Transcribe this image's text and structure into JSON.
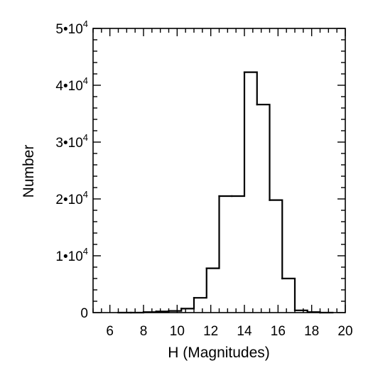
{
  "chart_data": {
    "type": "bar",
    "style": "step-histogram",
    "xlabel": "H (Magnitudes)",
    "ylabel": "Number",
    "xlim": [
      5,
      20
    ],
    "ylim": [
      0,
      50000
    ],
    "x_ticks": [
      6,
      8,
      10,
      12,
      14,
      16,
      18,
      20
    ],
    "y_ticks": [
      {
        "value": 0,
        "mantissa": "0",
        "exponent": ""
      },
      {
        "value": 10000,
        "mantissa": "1•10",
        "exponent": "4"
      },
      {
        "value": 20000,
        "mantissa": "2•10",
        "exponent": "4"
      },
      {
        "value": 30000,
        "mantissa": "3•10",
        "exponent": "4"
      },
      {
        "value": 40000,
        "mantissa": "4•10",
        "exponent": "4"
      },
      {
        "value": 50000,
        "mantissa": "5•10",
        "exponent": "4"
      }
    ],
    "bin_width": 0.75,
    "bins": [
      {
        "x0": 6.5,
        "x1": 7.25,
        "count": 0
      },
      {
        "x0": 7.25,
        "x1": 8.0,
        "count": 0
      },
      {
        "x0": 8.0,
        "x1": 8.75,
        "count": 100
      },
      {
        "x0": 8.75,
        "x1": 9.5,
        "count": 200
      },
      {
        "x0": 9.5,
        "x1": 10.25,
        "count": 300
      },
      {
        "x0": 10.25,
        "x1": 11.0,
        "count": 700
      },
      {
        "x0": 11.0,
        "x1": 11.75,
        "count": 2600
      },
      {
        "x0": 11.75,
        "x1": 12.5,
        "count": 7800
      },
      {
        "x0": 12.5,
        "x1": 13.25,
        "count": 20500
      },
      {
        "x0": 13.25,
        "x1": 14.0,
        "count": 20500
      },
      {
        "x0": 14.0,
        "x1": 14.75,
        "count": 42300
      },
      {
        "x0": 14.75,
        "x1": 15.5,
        "count": 36600
      },
      {
        "x0": 15.5,
        "x1": 16.25,
        "count": 19800
      },
      {
        "x0": 16.25,
        "x1": 17.0,
        "count": 6000
      },
      {
        "x0": 17.0,
        "x1": 17.75,
        "count": 400
      },
      {
        "x0": 17.75,
        "x1": 18.5,
        "count": 100
      },
      {
        "x0": 18.5,
        "x1": 19.25,
        "count": 0
      }
    ],
    "line_color": "#000000",
    "grid": false,
    "legend": "none"
  }
}
